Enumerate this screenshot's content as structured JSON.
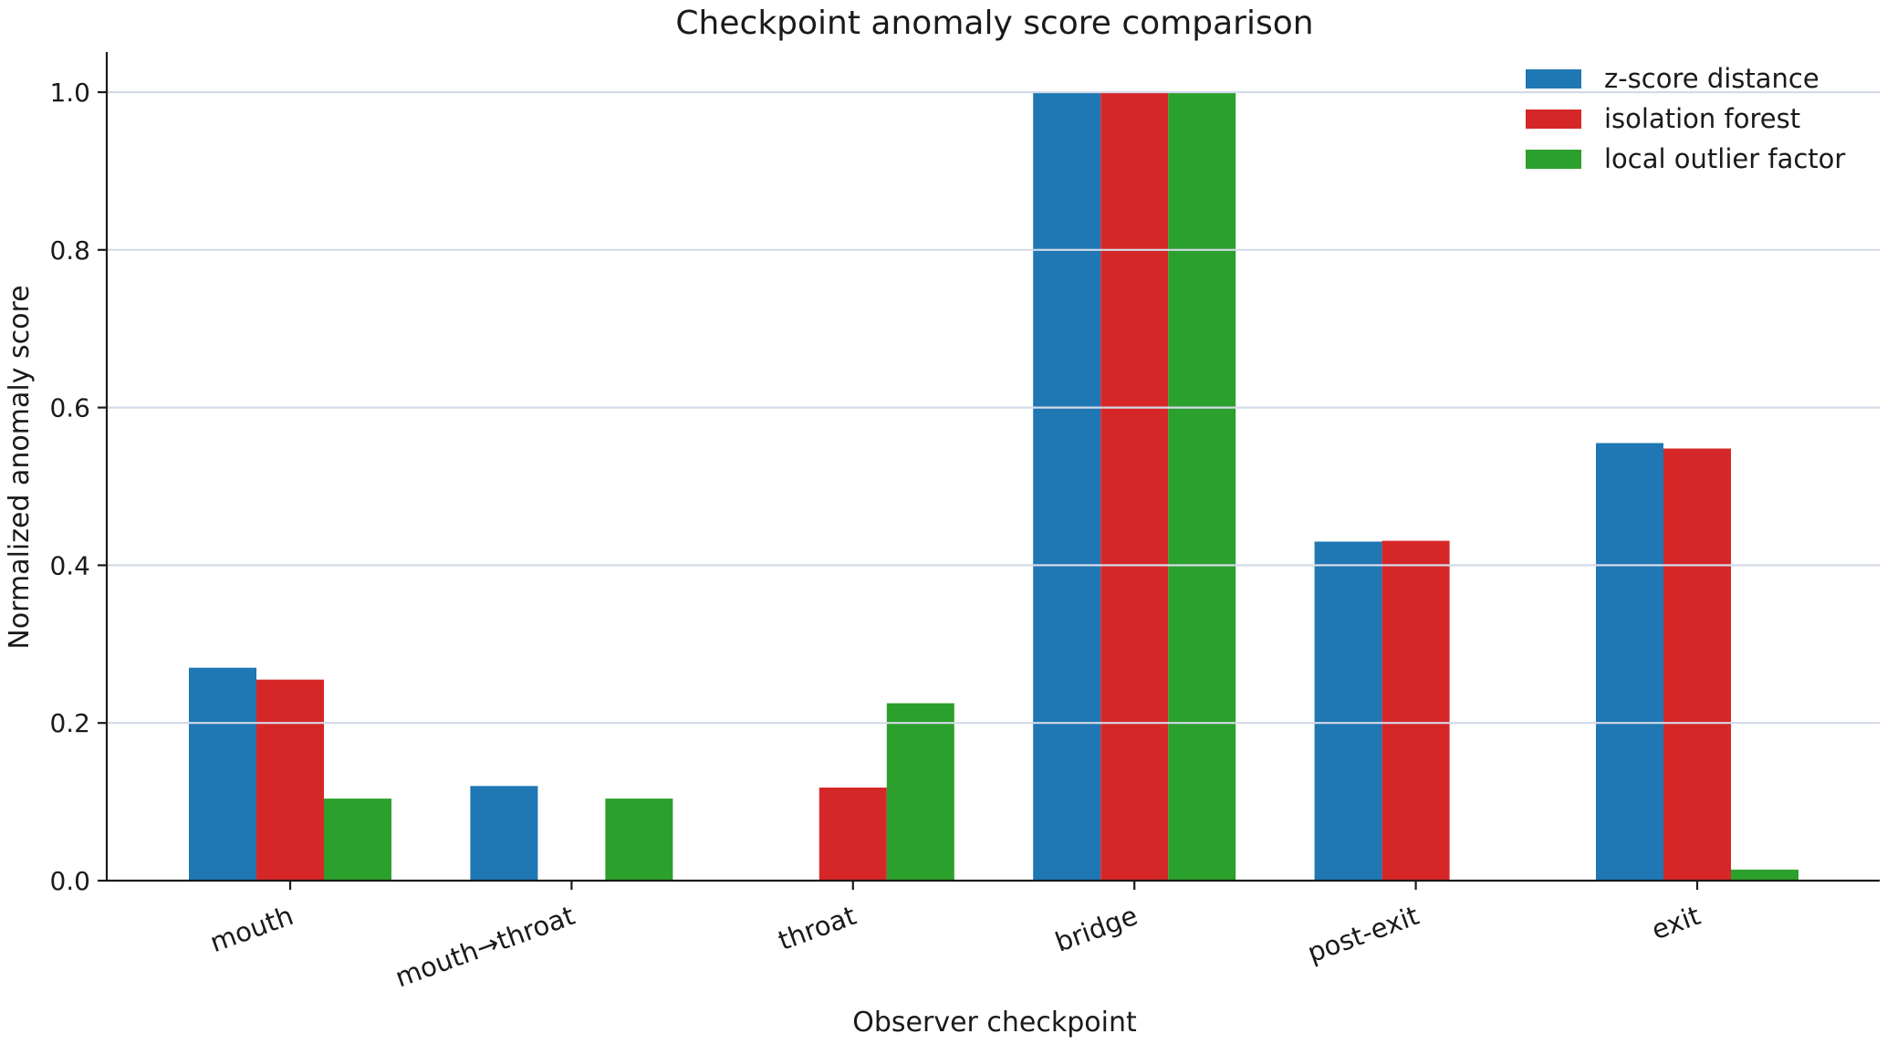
{
  "chart_data": {
    "type": "bar",
    "title": "Checkpoint anomaly score comparison",
    "xlabel": "Observer checkpoint",
    "ylabel": "Normalized anomaly score",
    "categories": [
      "mouth",
      "mouth→throat",
      "throat",
      "bridge",
      "post-exit",
      "exit"
    ],
    "series": [
      {
        "name": "z-score distance",
        "color": "#1f77b4",
        "values": [
          0.27,
          0.12,
          0.0,
          1.0,
          0.43,
          0.555
        ]
      },
      {
        "name": "isolation forest",
        "color": "#d62728",
        "values": [
          0.255,
          0.0,
          0.118,
          1.0,
          0.431,
          0.548
        ]
      },
      {
        "name": "local outlier factor",
        "color": "#2ca02c",
        "values": [
          0.104,
          0.104,
          0.225,
          1.0,
          0.0,
          0.014
        ]
      }
    ],
    "ylim": [
      0,
      1.05
    ],
    "yticks": [
      0.0,
      0.2,
      0.4,
      0.6,
      0.8,
      1.0
    ],
    "ytick_labels": [
      "0.0",
      "0.2",
      "0.4",
      "0.6",
      "0.8",
      "1.0"
    ],
    "grid": "horizontal",
    "gridline_color": "#d4dae8",
    "legend_position": "top-right"
  }
}
